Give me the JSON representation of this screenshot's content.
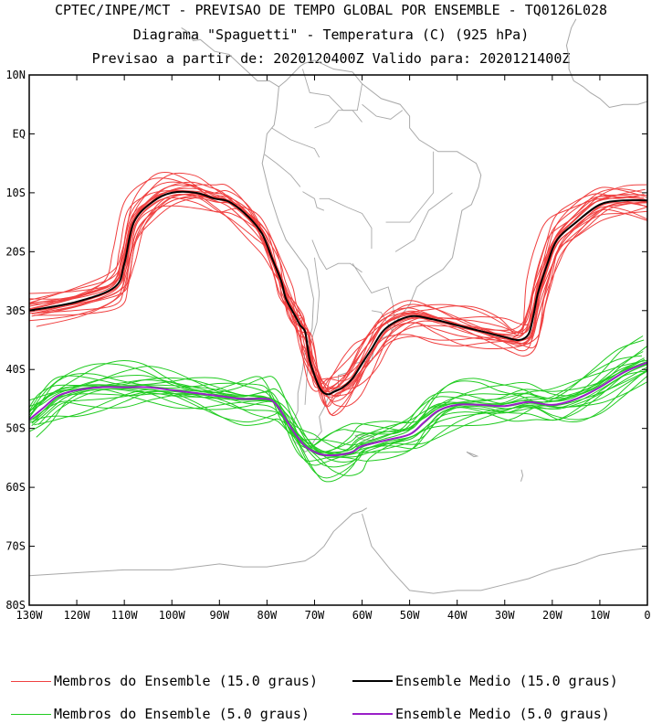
{
  "header": {
    "line1": "CPTEC/INPE/MCT - PREVISAO DE TEMPO GLOBAL POR ENSEMBLE - TQ0126L028",
    "line2": "Diagrama \"Spaguetti\" - Temperatura (C) (925 hPa)",
    "line3": "Previsao a partir de: 2020120400Z  Valido para: 2020121400Z"
  },
  "chart_data": {
    "type": "line",
    "title": "Diagrama \"Spaguetti\" - Temperatura (C) (925 hPa)",
    "xlabel": "",
    "ylabel": "",
    "xlim": [
      -130,
      0
    ],
    "ylim": [
      -80,
      10
    ],
    "x_ticks": [
      {
        "value": -130,
        "label": "130W"
      },
      {
        "value": -120,
        "label": "120W"
      },
      {
        "value": -110,
        "label": "110W"
      },
      {
        "value": -100,
        "label": "100W"
      },
      {
        "value": -90,
        "label": "90W"
      },
      {
        "value": -80,
        "label": "80W"
      },
      {
        "value": -70,
        "label": "70W"
      },
      {
        "value": -60,
        "label": "60W"
      },
      {
        "value": -50,
        "label": "50W"
      },
      {
        "value": -40,
        "label": "40W"
      },
      {
        "value": -30,
        "label": "30W"
      },
      {
        "value": -20,
        "label": "20W"
      },
      {
        "value": -10,
        "label": "10W"
      },
      {
        "value": 0,
        "label": "0"
      }
    ],
    "y_ticks": [
      {
        "value": 10,
        "label": "10N"
      },
      {
        "value": 0,
        "label": "EQ"
      },
      {
        "value": -10,
        "label": "10S"
      },
      {
        "value": -20,
        "label": "20S"
      },
      {
        "value": -30,
        "label": "30S"
      },
      {
        "value": -40,
        "label": "40S"
      },
      {
        "value": -50,
        "label": "50S"
      },
      {
        "value": -60,
        "label": "60S"
      },
      {
        "value": -70,
        "label": "70S"
      },
      {
        "value": -80,
        "label": "80S"
      }
    ],
    "colors": {
      "members_15": "#f04040",
      "mean_15": "#000000",
      "members_5": "#22cc22",
      "mean_5": "#9a1fc8",
      "coast": "#a8a8a8"
    },
    "series": [
      {
        "name": "Ensemble Medio (15.0 graus)",
        "role": "mean_15",
        "lon": [
          -130,
          -120,
          -112,
          -110,
          -108,
          -104,
          -100,
          -95,
          -91,
          -88,
          -84,
          -81,
          -79,
          -77,
          -76,
          -74,
          -73,
          -72,
          -71.5,
          -71,
          -70,
          -69,
          -68,
          -67,
          -66,
          -64,
          -62,
          -60,
          -58,
          -55,
          -50,
          -45,
          -40,
          -35,
          -30,
          -27,
          -25,
          -24,
          -23,
          -21,
          -19,
          -15,
          -10,
          -5,
          0
        ],
        "lat": [
          -30,
          -28.5,
          -26,
          -22,
          -15,
          -11.5,
          -10,
          -10,
          -11,
          -11.5,
          -14,
          -17,
          -21,
          -25,
          -28,
          -31,
          -32.5,
          -33.5,
          -36,
          -38.5,
          -41,
          -43,
          -44,
          -44.2,
          -43.8,
          -43,
          -41.5,
          -39,
          -36.5,
          -33,
          -31,
          -31.5,
          -32.5,
          -33.5,
          -34.5,
          -35,
          -34,
          -31,
          -27,
          -22,
          -18,
          -15,
          -12,
          -11.3,
          -11.3
        ]
      },
      {
        "name": "Ensemble Medio (5.0 graus)",
        "role": "mean_5",
        "lon": [
          -130,
          -127,
          -124,
          -120,
          -115,
          -110,
          -105,
          -100,
          -95,
          -90,
          -85,
          -80,
          -78,
          -76,
          -74,
          -72,
          -70,
          -68,
          -65,
          -62,
          -60,
          -55,
          -50,
          -47,
          -44,
          -40,
          -35,
          -30,
          -25,
          -20,
          -15,
          -10,
          -5,
          0
        ],
        "lat": [
          -48.5,
          -46.5,
          -44.5,
          -43.5,
          -43,
          -43,
          -43,
          -43.5,
          -44,
          -44.5,
          -45,
          -45,
          -46,
          -48.5,
          -51,
          -53,
          -54,
          -54.5,
          -54.5,
          -54,
          -53,
          -52,
          -51,
          -49,
          -47,
          -46,
          -46,
          -46.2,
          -45.5,
          -46,
          -45,
          -43,
          -40.5,
          -38.8
        ]
      },
      {
        "name": "Membros do Ensemble (15.0 graus)",
        "role": "members_15",
        "lon": [
          -130,
          -120,
          -112,
          -110,
          -108,
          -104,
          -100,
          -95,
          -91,
          -88,
          -84,
          -81,
          -79,
          -77,
          -76,
          -74,
          -73,
          -72,
          -71.5,
          -71,
          -70,
          -69,
          -68,
          -67,
          -66,
          -64,
          -62,
          -60,
          -58,
          -55,
          -50,
          -45,
          -40,
          -35,
          -30,
          -27,
          -25,
          -24,
          -23,
          -21,
          -19,
          -15,
          -10,
          -5,
          0
        ],
        "offsets_lat": [
          0,
          1.2,
          -1.2,
          2.2,
          -2.2,
          3.2,
          -3.2,
          0.6,
          -0.6,
          1.8,
          -1.8,
          2.7,
          -2.7,
          4.0,
          -4.0,
          1.0,
          -1.0,
          3.6,
          -3.6,
          2.0
        ],
        "offsets_lon": [
          0.8,
          -0.8,
          1.4,
          -1.4,
          0.3,
          -0.3,
          2.0,
          -2.0,
          1.0,
          -1.0,
          0.5,
          -0.5,
          1.6,
          -1.6,
          0.2,
          -0.2,
          2.4,
          -2.4,
          1.2,
          -1.2
        ]
      },
      {
        "name": "Membros do Ensemble (5.0 graus)",
        "role": "members_5",
        "lon": [
          -130,
          -127,
          -124,
          -120,
          -115,
          -110,
          -105,
          -100,
          -95,
          -90,
          -85,
          -80,
          -78,
          -76,
          -74,
          -72,
          -70,
          -68,
          -65,
          -62,
          -60,
          -55,
          -50,
          -47,
          -44,
          -40,
          -35,
          -30,
          -25,
          -20,
          -15,
          -10,
          -5,
          0
        ],
        "offsets_lat": [
          0,
          1.4,
          -1.4,
          2.6,
          -2.6,
          3.6,
          -3.6,
          0.7,
          -0.7,
          2.0,
          -2.0,
          3.0,
          -3.0,
          4.5,
          -4.5,
          1.1,
          -1.1,
          4.0,
          -4.0,
          2.3
        ],
        "offsets_lon": [
          0.8,
          -0.8,
          1.4,
          -1.4,
          0.3,
          -0.3,
          2.0,
          -2.0,
          1.0,
          -1.0,
          0.5,
          -0.5,
          1.6,
          -1.6,
          0.2,
          -0.2,
          2.4,
          -2.4,
          1.2,
          -1.2
        ]
      }
    ],
    "coastlines": [
      {
        "name": "south-america",
        "lon": [
          -77.5,
          -76,
          -73,
          -72,
          -70,
          -66,
          -62,
          -60,
          -56,
          -52,
          -50,
          -50,
          -48,
          -44,
          -40,
          -36,
          -35,
          -35.5,
          -37,
          -39,
          -40,
          -41,
          -43,
          -47,
          -48.5,
          -50,
          -53,
          -54,
          -56.5,
          -57.5,
          -58,
          -62,
          -63,
          -65,
          -65,
          -67,
          -68,
          -69,
          -68.5,
          -70,
          -71,
          -72,
          -73,
          -74.5,
          -75,
          -73.5,
          -73.5,
          -73,
          -72.5,
          -72,
          -70.5,
          -70.2,
          -71.5,
          -76,
          -77.5,
          -79.5,
          -81,
          -80.5,
          -80,
          -78.5,
          -78,
          -77.5
        ],
        "lat": [
          8,
          9,
          11.5,
          12,
          12.5,
          11,
          10.5,
          8.5,
          6,
          5,
          3,
          1,
          -1,
          -3,
          -3,
          -5,
          -7,
          -9,
          -12,
          -13,
          -17,
          -21,
          -23,
          -25,
          -26,
          -29,
          -32,
          -34,
          -35,
          -36.5,
          -38.5,
          -39,
          -40.5,
          -41,
          -43,
          -44.5,
          -46.5,
          -48,
          -50.5,
          -52,
          -53.5,
          -54,
          -53,
          -52,
          -50,
          -47,
          -44,
          -42,
          -40,
          -37,
          -33,
          -28,
          -23,
          -18,
          -15,
          -10,
          -5,
          -3,
          0,
          1.5,
          4,
          8
        ]
      },
      {
        "name": "central-america",
        "lon": [
          -77.5,
          -79.5,
          -82,
          -84,
          -86,
          -88,
          -91,
          -94,
          -95.5,
          -97,
          -98
        ],
        "lat": [
          8,
          9,
          9,
          10.5,
          12,
          13.5,
          14,
          16,
          15.8,
          17.5,
          18
        ]
      },
      {
        "name": "africa-west",
        "lon": [
          0,
          -2,
          -5,
          -8,
          -10,
          -12,
          -13.5,
          -15.5,
          -16.5,
          -16.5,
          -17,
          -16,
          -15
        ],
        "lat": [
          5.5,
          5,
          5,
          4.5,
          6,
          7,
          8,
          9,
          11,
          13,
          15,
          18,
          19.5
        ]
      },
      {
        "name": "antarctic-peninsula",
        "lon": [
          -59,
          -60,
          -62,
          -64,
          -66,
          -68,
          -70,
          -72,
          -76,
          -80,
          -85,
          -90,
          -100,
          -110,
          -120,
          -130
        ],
        "lat": [
          -63.5,
          -64,
          -64.5,
          -66,
          -67.5,
          -70,
          -71.5,
          -72.5,
          -73,
          -73.5,
          -73.5,
          -73,
          -74,
          -74,
          -74.5,
          -75
        ]
      },
      {
        "name": "antarctica-weddell",
        "lon": [
          -60,
          -58,
          -54,
          -50,
          -45,
          -40,
          -35,
          -30,
          -25,
          -20,
          -15,
          -10,
          -5,
          0
        ],
        "lat": [
          -64.5,
          -70,
          -74,
          -77.5,
          -78,
          -77.5,
          -77.5,
          -76.5,
          -75.5,
          -74,
          -73,
          -71.5,
          -70.8,
          -70.3
        ]
      },
      {
        "name": "falkland-islands",
        "lon": [
          -61.5,
          -60,
          -58,
          -57.5,
          -59,
          -61.5
        ],
        "lat": [
          -51.2,
          -51.9,
          -52,
          -51.5,
          -51.1,
          -51.2
        ]
      },
      {
        "name": "south-georgia",
        "lon": [
          -38,
          -37,
          -35.8,
          -36.5,
          -38
        ],
        "lat": [
          -54,
          -54.3,
          -54.7,
          -54.8,
          -54
        ]
      },
      {
        "name": "south-sandwich",
        "lon": [
          -26.5,
          -26.2,
          -26.6
        ],
        "lat": [
          -57,
          -58,
          -59
        ]
      }
    ],
    "country_borders": [
      {
        "lon": [
          -79,
          -75,
          -70,
          -69
        ],
        "lat": [
          1,
          -1,
          -2.5,
          -4
        ]
      },
      {
        "lon": [
          -80.5,
          -78,
          -75,
          -73
        ],
        "lat": [
          -3.5,
          -5,
          -7,
          -9
        ]
      },
      {
        "lon": [
          -72.5,
          -70,
          -69.5,
          -68
        ],
        "lat": [
          -9.8,
          -11,
          -12.5,
          -13
        ]
      },
      {
        "lon": [
          -69,
          -67,
          -63,
          -60,
          -58,
          -58
        ],
        "lat": [
          -11,
          -11,
          -12.5,
          -13.5,
          -16,
          -19.5
        ]
      },
      {
        "lon": [
          -70.5,
          -69,
          -67.5,
          -65,
          -62.5,
          -60
        ],
        "lat": [
          -18,
          -21,
          -23,
          -22,
          -22,
          -23.5
        ]
      },
      {
        "lon": [
          -70,
          -69,
          -69.5,
          -71,
          -71.5,
          -72
        ],
        "lat": [
          -21,
          -27,
          -32,
          -36,
          -40,
          -46
        ]
      },
      {
        "lon": [
          -62,
          -58,
          -54.5,
          -53.5,
          -53
        ],
        "lat": [
          -22,
          -27,
          -26,
          -29,
          -33
        ]
      },
      {
        "lon": [
          -58,
          -56,
          -53.5
        ],
        "lat": [
          -30,
          -30.3,
          -33.7
        ]
      },
      {
        "lon": [
          -60,
          -62,
          -65,
          -67,
          -70
        ],
        "lat": [
          2,
          4,
          4,
          2,
          1
        ]
      },
      {
        "lon": [
          -72.5,
          -71,
          -67,
          -64,
          -61,
          -60
        ],
        "lat": [
          11,
          7,
          6.5,
          4,
          4,
          8.5
        ]
      },
      {
        "lon": [
          -60,
          -57,
          -54,
          -51.5
        ],
        "lat": [
          5,
          3,
          2.5,
          4
        ]
      },
      {
        "lon": [
          -45,
          -45,
          -50,
          -55
        ],
        "lat": [
          -3,
          -10,
          -15,
          -15
        ]
      },
      {
        "lon": [
          -41,
          -46,
          -49,
          -53
        ],
        "lat": [
          -10,
          -13,
          -18,
          -20
        ]
      }
    ]
  },
  "legend": {
    "items": [
      {
        "label": "Membros do Ensemble (15.0 graus)",
        "color": "#f04040",
        "weight": "thin"
      },
      {
        "label": "Ensemble Medio (15.0 graus)",
        "color": "#000000",
        "weight": "thick"
      },
      {
        "label": "Membros do Ensemble (5.0 graus)",
        "color": "#22cc22",
        "weight": "thin"
      },
      {
        "label": "Ensemble Medio (5.0 graus)",
        "color": "#9a1fc8",
        "weight": "thick"
      }
    ]
  }
}
